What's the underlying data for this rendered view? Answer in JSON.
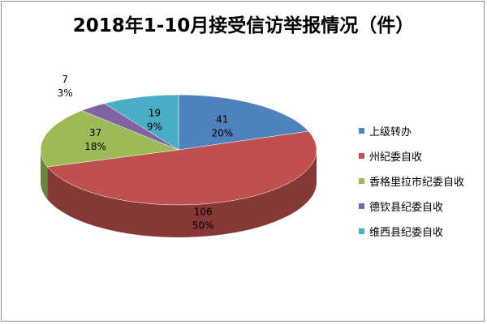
{
  "chart_data": {
    "type": "pie",
    "title": "2018年1-10月接受信访举报情况（件）",
    "categories": [
      "上级转办",
      "州纪委自收",
      "香格里拉市纪委自收",
      "德钦县纪委自收",
      "维西县纪委自收"
    ],
    "values": [
      41,
      106,
      37,
      7,
      19
    ],
    "percent_labels": [
      "20%",
      "50%",
      "18%",
      "3%",
      "9%"
    ],
    "colors": [
      "#4f81bd",
      "#c0504d",
      "#9bbb59",
      "#8064a2",
      "#4bacc6"
    ],
    "style": "3d",
    "legend_position": "right"
  }
}
